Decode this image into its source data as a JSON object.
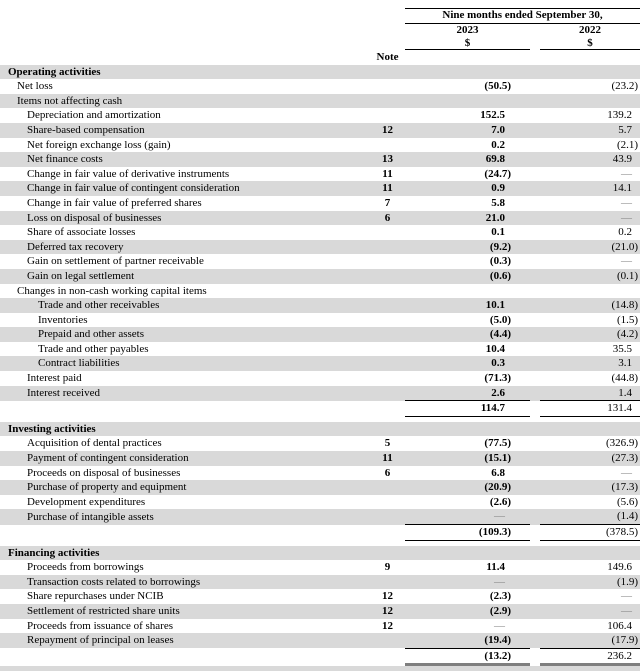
{
  "document": {
    "kind": "cash-flow-statement-table"
  },
  "colors": {
    "row_shade": "#d9d9d9",
    "rule": "#000000",
    "thick_rule": "#7f7f7f",
    "dash": "#808080",
    "text": "#000000"
  },
  "table": {
    "header": {
      "period_title": "Nine months ended September 30,",
      "col_2023": "2023",
      "col_2022": "2022",
      "currency_2023": "$",
      "currency_2022": "$",
      "note_label": "Note"
    },
    "rows": [
      {
        "type": "section",
        "label": "Operating activities"
      },
      {
        "type": "item",
        "label": "Net loss",
        "indent": 1,
        "note": "",
        "y2023": "(50.5)",
        "y2022": "(23.2)"
      },
      {
        "type": "item",
        "label": "Items not affecting cash",
        "indent": 1,
        "note": "",
        "y2023": "",
        "y2022": ""
      },
      {
        "type": "item",
        "label": "Depreciation and amortization",
        "indent": 2,
        "note": "",
        "y2023": "152.5",
        "y2022": "139.2"
      },
      {
        "type": "item",
        "label": "Share-based compensation",
        "indent": 2,
        "note": "12",
        "y2023": "7.0",
        "y2022": "5.7"
      },
      {
        "type": "item",
        "label": "Net foreign exchange loss (gain)",
        "indent": 2,
        "note": "",
        "y2023": "0.2",
        "y2022": "(2.1)"
      },
      {
        "type": "item",
        "label": "Net finance costs",
        "indent": 2,
        "note": "13",
        "y2023": "69.8",
        "y2022": "43.9"
      },
      {
        "type": "item",
        "label": "Change in fair value of derivative instruments",
        "indent": 2,
        "note": "11",
        "y2023": "(24.7)",
        "y2022": "—"
      },
      {
        "type": "item",
        "label": "Change in fair value of contingent consideration",
        "indent": 2,
        "note": "11",
        "y2023": "0.9",
        "y2022": "14.1"
      },
      {
        "type": "item",
        "label": "Change in fair value of preferred shares",
        "indent": 2,
        "note": "7",
        "y2023": "5.8",
        "y2022": "—"
      },
      {
        "type": "item",
        "label": "Loss on disposal of businesses",
        "indent": 2,
        "note": "6",
        "y2023": "21.0",
        "y2022": "—"
      },
      {
        "type": "item",
        "label": "Share of associate losses",
        "indent": 2,
        "note": "",
        "y2023": "0.1",
        "y2022": "0.2"
      },
      {
        "type": "item",
        "label": "Deferred tax recovery",
        "indent": 2,
        "note": "",
        "y2023": "(9.2)",
        "y2022": "(21.0)"
      },
      {
        "type": "item",
        "label": "Gain on settlement of partner receivable",
        "indent": 2,
        "note": "",
        "y2023": "(0.3)",
        "y2022": "—"
      },
      {
        "type": "item",
        "label": "Gain on legal settlement",
        "indent": 2,
        "note": "",
        "y2023": "(0.6)",
        "y2022": "(0.1)"
      },
      {
        "type": "item",
        "label": "Changes in non-cash working capital items",
        "indent": 1,
        "note": "",
        "y2023": "",
        "y2022": ""
      },
      {
        "type": "item",
        "label": "Trade and other receivables",
        "indent": 3,
        "note": "",
        "y2023": "10.1",
        "y2022": "(14.8)"
      },
      {
        "type": "item",
        "label": "Inventories",
        "indent": 3,
        "note": "",
        "y2023": "(5.0)",
        "y2022": "(1.5)"
      },
      {
        "type": "item",
        "label": "Prepaid and other assets",
        "indent": 3,
        "note": "",
        "y2023": "(4.4)",
        "y2022": "(4.2)"
      },
      {
        "type": "item",
        "label": "Trade and other payables",
        "indent": 3,
        "note": "",
        "y2023": "10.4",
        "y2022": "35.5"
      },
      {
        "type": "item",
        "label": "Contract liabilities",
        "indent": 3,
        "note": "",
        "y2023": "0.3",
        "y2022": "3.1"
      },
      {
        "type": "item",
        "label": "Interest paid",
        "indent": 2,
        "note": "",
        "y2023": "(71.3)",
        "y2022": "(44.8)"
      },
      {
        "type": "item",
        "label": "Interest received",
        "indent": 2,
        "note": "",
        "y2023": "2.6",
        "y2022": "1.4",
        "rule_below": true
      },
      {
        "type": "total",
        "label": "",
        "note": "",
        "y2023": "114.7",
        "y2022": "131.4"
      },
      {
        "type": "spacer"
      },
      {
        "type": "section",
        "label": "Investing activities"
      },
      {
        "type": "item",
        "label": "Acquisition of dental practices",
        "indent": 2,
        "note": "5",
        "y2023": "(77.5)",
        "y2022": "(326.9)"
      },
      {
        "type": "item",
        "label": "Payment of contingent consideration",
        "indent": 2,
        "note": "11",
        "y2023": "(15.1)",
        "y2022": "(27.3)"
      },
      {
        "type": "item",
        "label": "Proceeds on disposal of businesses",
        "indent": 2,
        "note": "6",
        "y2023": "6.8",
        "y2022": "—"
      },
      {
        "type": "item",
        "label": "Purchase of property and equipment",
        "indent": 2,
        "note": "",
        "y2023": "(20.9)",
        "y2022": "(17.3)"
      },
      {
        "type": "item",
        "label": "Development expenditures",
        "indent": 2,
        "note": "",
        "y2023": "(2.6)",
        "y2022": "(5.6)"
      },
      {
        "type": "item",
        "label": "Purchase of intangible assets",
        "indent": 2,
        "note": "",
        "y2023": "—",
        "y2022": "(1.4)",
        "rule_below": true
      },
      {
        "type": "total",
        "label": "",
        "note": "",
        "y2023": "(109.3)",
        "y2022": "(378.5)"
      },
      {
        "type": "spacer"
      },
      {
        "type": "section",
        "label": "Financing activities"
      },
      {
        "type": "item",
        "label": "Proceeds from borrowings",
        "indent": 2,
        "note": "9",
        "y2023": "11.4",
        "y2022": "149.6"
      },
      {
        "type": "item",
        "label": "Transaction costs related to borrowings",
        "indent": 2,
        "note": "",
        "y2023": "—",
        "y2022": "(1.9)"
      },
      {
        "type": "item",
        "label": "Share repurchases under NCIB",
        "indent": 2,
        "note": "12",
        "y2023": "(2.3)",
        "y2022": "—"
      },
      {
        "type": "item",
        "label": "Settlement of restricted share units",
        "indent": 2,
        "note": "12",
        "y2023": "(2.9)",
        "y2022": "—"
      },
      {
        "type": "item",
        "label": "Proceeds from issuance of shares",
        "indent": 2,
        "note": "12",
        "y2023": "—",
        "y2022": "106.4"
      },
      {
        "type": "item",
        "label": "Repayment of principal on leases",
        "indent": 2,
        "note": "",
        "y2023": "(19.4)",
        "y2022": "(17.9)",
        "rule_below": true
      },
      {
        "type": "grand_total",
        "label": "",
        "note": "",
        "y2023": "(13.2)",
        "y2022": "236.2"
      },
      {
        "type": "bottom_spacer"
      }
    ]
  }
}
